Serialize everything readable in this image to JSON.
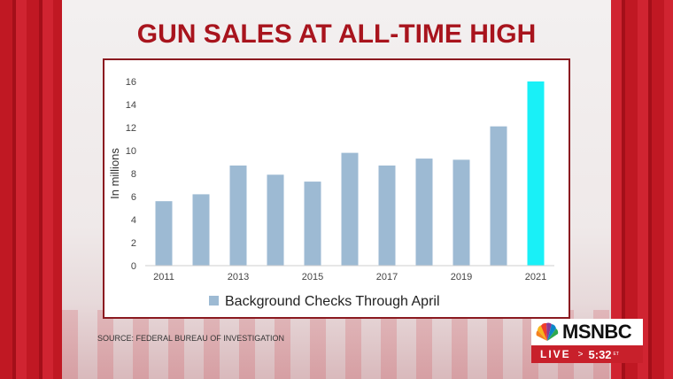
{
  "headline": "GUN SALES AT ALL-TIME HIGH",
  "source": "SOURCE: FEDERAL BUREAU OF INVESTIGATION",
  "network": {
    "logo_text": "MSNBC",
    "live_label": "LIVE",
    "arrow": ">",
    "time": "5:32",
    "timezone": "ET"
  },
  "colors": {
    "headline": "#a8141d",
    "bar": "#9dbad3",
    "highlight_bar": "#19f0f7",
    "frame": "#8b1a20",
    "live_bar": "#c8202b"
  },
  "chart_data": {
    "type": "bar",
    "title": "",
    "xlabel": "",
    "ylabel": "In millions",
    "categories": [
      "2011",
      "2012",
      "2013",
      "2014",
      "2015",
      "2016",
      "2017",
      "2018",
      "2019",
      "2020",
      "2021"
    ],
    "tick_labels": [
      "2011",
      "",
      "2013",
      "",
      "2015",
      "",
      "2017",
      "",
      "2019",
      "",
      "2021"
    ],
    "series": [
      {
        "name": "Background Checks Through April",
        "values": [
          5.6,
          6.2,
          8.7,
          7.9,
          7.3,
          9.8,
          8.7,
          9.3,
          9.2,
          12.1,
          16.0
        ],
        "highlight_index": 10
      }
    ],
    "ylim": [
      0,
      16
    ],
    "yticks": [
      0,
      2,
      4,
      6,
      8,
      10,
      12,
      14,
      16
    ],
    "grid": false,
    "legend": "bottom"
  }
}
